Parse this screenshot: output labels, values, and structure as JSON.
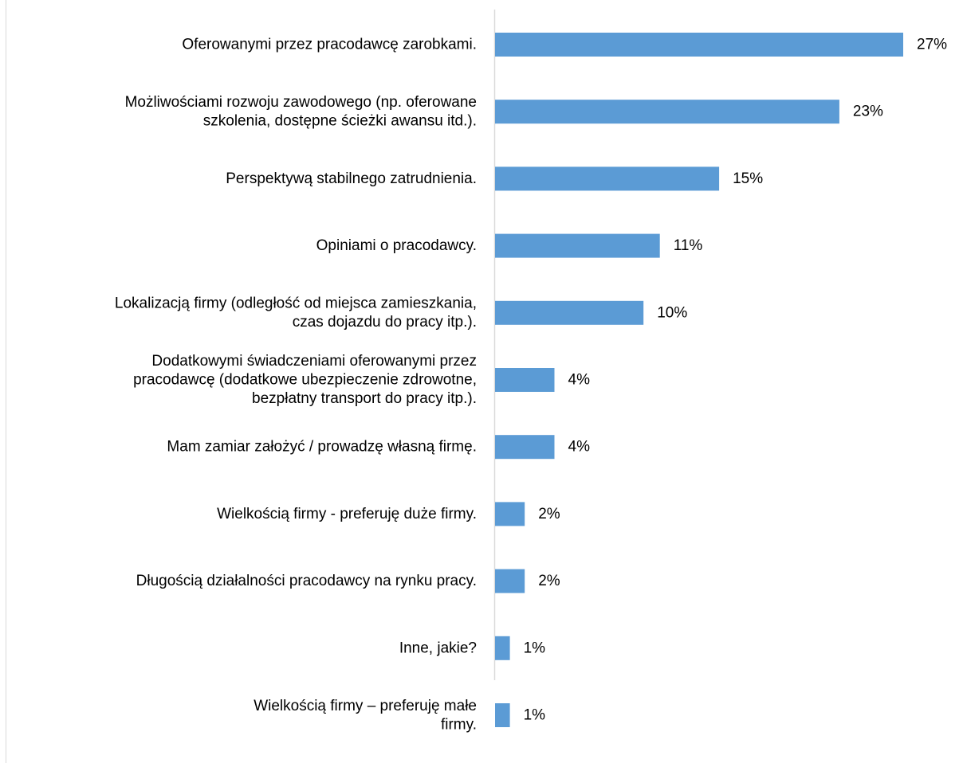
{
  "chart_data": {
    "type": "bar",
    "orientation": "horizontal",
    "categories": [
      [
        "Oferowanymi przez pracodawcę zarobkami."
      ],
      [
        "Możliwościami rozwoju zawodowego (np. oferowane",
        "szkolenia, dostępne ścieżki awansu itd.)."
      ],
      [
        "Perspektywą stabilnego zatrudnienia."
      ],
      [
        "Opiniami o pracodawcy."
      ],
      [
        "Lokalizacją firmy (odległość od miejsca zamieszkania,",
        "czas dojazdu do pracy itp.)."
      ],
      [
        "Dodatkowymi świadczeniami oferowanymi przez",
        "pracodawcę (dodatkowe ubezpieczenie zdrowotne,",
        "bezpłatny transport do pracy itp.)."
      ],
      [
        "Mam zamiar założyć / prowadzę własną firmę."
      ],
      [
        "Wielkością firmy - preferuję duże firmy."
      ],
      [
        "Długością działalności pracodawcy na rynku pracy."
      ],
      [
        "Inne, jakie?"
      ],
      [
        "Wielkością firmy – preferuję małe",
        "firmy."
      ]
    ],
    "values": [
      27,
      23,
      15,
      11,
      10,
      4,
      4,
      2,
      2,
      1,
      1
    ],
    "data_labels": [
      "27%",
      "23%",
      "15%",
      "11%",
      "10%",
      "4%",
      "4%",
      "2%",
      "2%",
      "1%",
      "1%"
    ],
    "bar_lengths_percent": [
      27.5,
      23.2,
      15.1,
      11.1,
      10.0,
      4.0,
      4.0,
      2.0,
      2.0,
      1.0,
      1.0
    ],
    "title": "",
    "xlabel": "",
    "ylabel": "",
    "xlim": [
      0,
      27.5
    ],
    "grid": false,
    "legend": "none",
    "bar_color": "#5B9BD5",
    "axis_color": "#D9D9D9"
  }
}
